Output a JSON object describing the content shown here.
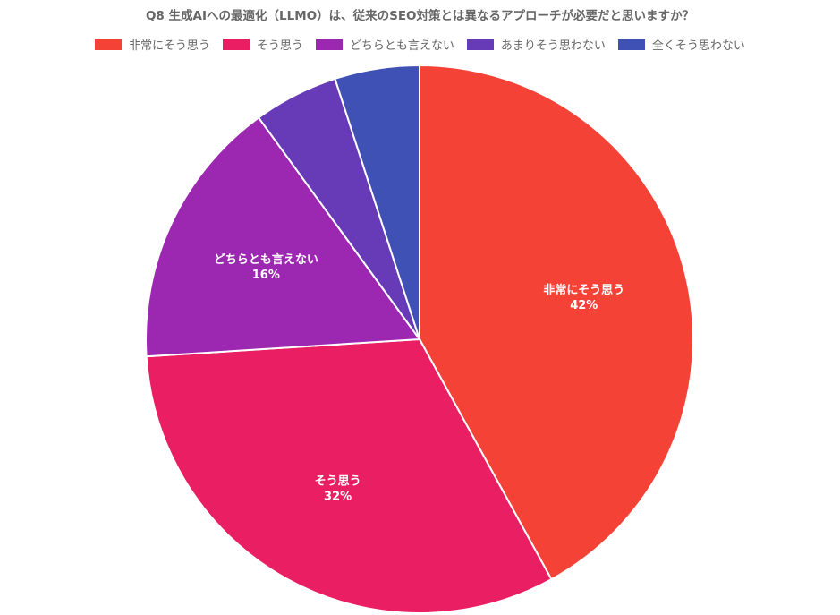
{
  "chart_data": {
    "type": "pie",
    "title": "Q8 生成AIへの最適化（LLMO）は、従来のSEO対策とは異なるアプローチが必要だと思いますか？",
    "categories": [
      "非常にそう思う",
      "そう思う",
      "どちらとも言えない",
      "あまりそう思わない",
      "全くそう思わない"
    ],
    "values": [
      42,
      32,
      16,
      5,
      5
    ],
    "value_labels": [
      "42%",
      "32%",
      "16%",
      "",
      ""
    ],
    "colors": [
      "#f44336",
      "#e91e63",
      "#9c27b0",
      "#673ab7",
      "#3f51b5"
    ],
    "legend_position": "top"
  }
}
